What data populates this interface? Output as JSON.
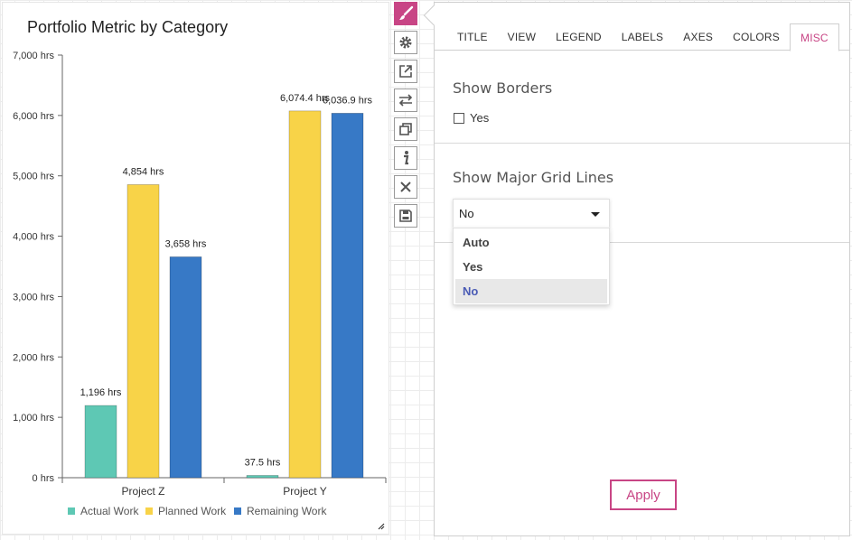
{
  "chart": {
    "title": "Portfolio Metric by Category"
  },
  "chart_data": {
    "type": "bar",
    "title": "Portfolio Metric by Category",
    "categories": [
      "Project Z",
      "Project Y"
    ],
    "series": [
      {
        "name": "Actual Work",
        "color": "#5ec8b4",
        "values": [
          1196,
          37.5
        ],
        "labels": [
          "1,196 hrs",
          "37.5 hrs"
        ]
      },
      {
        "name": "Planned Work",
        "color": "#f8d348",
        "values": [
          4854,
          6074.4
        ],
        "labels": [
          "4,854 hrs",
          "6,074.4 hrs"
        ]
      },
      {
        "name": "Remaining Work",
        "color": "#3779c6",
        "values": [
          3658,
          6036.9
        ],
        "labels": [
          "3,658 hrs",
          "6,036.9 hrs"
        ]
      }
    ],
    "ylim": [
      0,
      7000
    ],
    "yticks": [
      "0 hrs",
      "1,000 hrs",
      "2,000 hrs",
      "3,000 hrs",
      "4,000 hrs",
      "5,000 hrs",
      "6,000 hrs",
      "7,000 hrs"
    ],
    "grid": false,
    "legend_position": "bottom"
  },
  "toolbar": {
    "buttons": [
      {
        "name": "paint-brush-button",
        "icon": "paint-brush-icon",
        "active": true
      },
      {
        "name": "settings-button",
        "icon": "gear-icon",
        "active": false
      },
      {
        "name": "open-external-button",
        "icon": "external-link-icon",
        "active": false
      },
      {
        "name": "swap-button",
        "icon": "swap-arrows-icon",
        "active": false
      },
      {
        "name": "duplicate-button",
        "icon": "copy-icon",
        "active": false
      },
      {
        "name": "info-button",
        "icon": "info-icon",
        "active": false
      },
      {
        "name": "close-button",
        "icon": "close-icon",
        "active": false
      },
      {
        "name": "save-button",
        "icon": "save-icon",
        "active": false
      }
    ]
  },
  "format_panel": {
    "tabs": [
      {
        "label": "TITLE"
      },
      {
        "label": "VIEW"
      },
      {
        "label": "LEGEND"
      },
      {
        "label": "LABELS"
      },
      {
        "label": "AXES"
      },
      {
        "label": "COLORS"
      },
      {
        "label": "MISC",
        "active": true
      }
    ],
    "show_borders": {
      "title": "Show Borders",
      "checkbox_label": "Yes",
      "checked": false
    },
    "show_grid": {
      "title": "Show Major Grid Lines",
      "selected": "No",
      "options": [
        "Auto",
        "Yes",
        "No"
      ]
    },
    "apply_label": "Apply",
    "accent_color": "#c84585"
  }
}
